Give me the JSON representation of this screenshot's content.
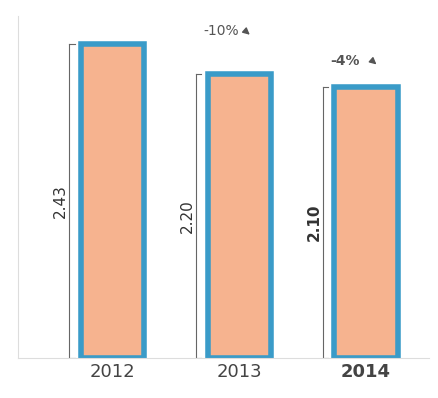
{
  "chart_data": {
    "type": "bar",
    "categories": [
      "2012",
      "2013",
      "2014"
    ],
    "values": [
      2.43,
      2.2,
      2.1
    ],
    "value_labels": [
      "2.43",
      "2.20",
      "2.10"
    ],
    "changes": [
      {
        "value": -10,
        "label": "-10%"
      },
      {
        "value": -4,
        "label": "-4%"
      }
    ],
    "color": "#f6b38f",
    "ylim": [
      0,
      2.65
    ],
    "data_labels": true,
    "tick_labels": "x"
  }
}
